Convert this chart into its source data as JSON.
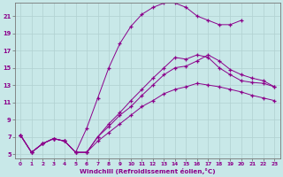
{
  "xlabel": "Windchill (Refroidissement éolien,°C)",
  "ylabel": "",
  "bg_color": "#c8e8e8",
  "line_color": "#8B008B",
  "grid_color": "#b0d0d0",
  "xlim": [
    -0.5,
    23.5
  ],
  "ylim": [
    4.5,
    22.5
  ],
  "xticks": [
    0,
    1,
    2,
    3,
    4,
    5,
    6,
    7,
    8,
    9,
    10,
    11,
    12,
    13,
    14,
    15,
    16,
    17,
    18,
    19,
    20,
    21,
    22,
    23
  ],
  "yticks": [
    5,
    7,
    9,
    11,
    13,
    15,
    17,
    19,
    21
  ],
  "curve1_x": [
    0,
    1,
    2,
    3,
    4,
    5,
    6,
    7,
    8,
    9,
    10,
    11,
    12,
    13,
    14,
    15,
    16,
    17,
    18,
    19,
    20,
    21,
    22,
    23
  ],
  "curve1_y": [
    7.2,
    5.2,
    6.2,
    6.8,
    6.5,
    5.2,
    5.2,
    7.0,
    8.5,
    9.8,
    11.2,
    12.5,
    13.8,
    15.0,
    16.2,
    16.0,
    16.5,
    16.2,
    15.0,
    14.2,
    13.5,
    13.3,
    13.2,
    12.8
  ],
  "curve2_x": [
    0,
    1,
    2,
    3,
    4,
    5,
    6,
    7,
    8,
    9,
    10,
    11,
    12,
    13,
    14,
    15,
    16,
    17,
    18,
    19,
    20
  ],
  "curve2_y": [
    7.2,
    5.2,
    6.2,
    6.8,
    6.5,
    5.2,
    8.0,
    11.5,
    15.0,
    17.8,
    19.8,
    21.2,
    22.0,
    22.5,
    22.5,
    22.0,
    21.0,
    20.5,
    20.0,
    20.0,
    20.5
  ],
  "curve3_x": [
    0,
    1,
    2,
    3,
    4,
    5,
    6,
    7,
    8,
    9,
    10,
    11,
    12,
    13,
    14,
    15,
    16,
    17,
    18,
    19,
    20,
    21,
    22,
    23
  ],
  "curve3_y": [
    7.2,
    5.2,
    6.2,
    6.8,
    6.5,
    5.2,
    5.2,
    7.0,
    8.2,
    9.5,
    10.5,
    11.8,
    13.0,
    14.2,
    15.0,
    15.2,
    15.8,
    16.5,
    15.8,
    14.8,
    14.2,
    13.8,
    13.5,
    12.8
  ],
  "curve4_x": [
    0,
    1,
    2,
    3,
    4,
    5,
    6,
    7,
    8,
    9,
    10,
    11,
    12,
    13,
    14,
    15,
    16,
    17,
    18,
    19,
    20,
    21,
    22,
    23
  ],
  "curve4_y": [
    7.2,
    5.2,
    6.2,
    6.8,
    6.5,
    5.2,
    5.2,
    6.5,
    7.5,
    8.5,
    9.5,
    10.5,
    11.2,
    12.0,
    12.5,
    12.8,
    13.2,
    13.0,
    12.8,
    12.5,
    12.2,
    11.8,
    11.5,
    11.2
  ]
}
